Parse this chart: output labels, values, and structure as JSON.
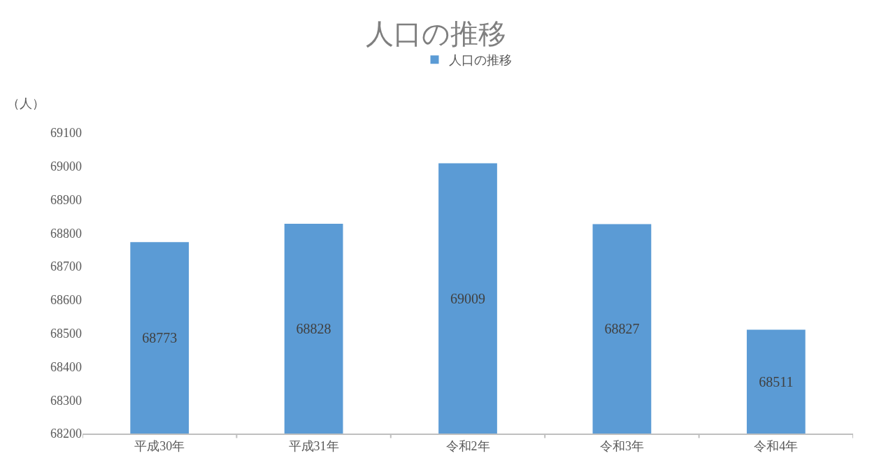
{
  "chart_data": {
    "type": "bar",
    "title": "人口の推移",
    "ylabel": "（人）",
    "categories": [
      "平成30年",
      "平成31年",
      "令和2年",
      "令和3年",
      "令和4年"
    ],
    "series": [
      {
        "name": "人口の推移",
        "color": "#5b9bd5",
        "values": [
          68773,
          68828,
          69009,
          68827,
          68511
        ]
      }
    ],
    "ylim": [
      68200,
      69100
    ],
    "yticks": [
      68200,
      68300,
      68400,
      68500,
      68600,
      68700,
      68800,
      68900,
      69000,
      69100
    ],
    "legend": "top",
    "data_labels": true
  }
}
